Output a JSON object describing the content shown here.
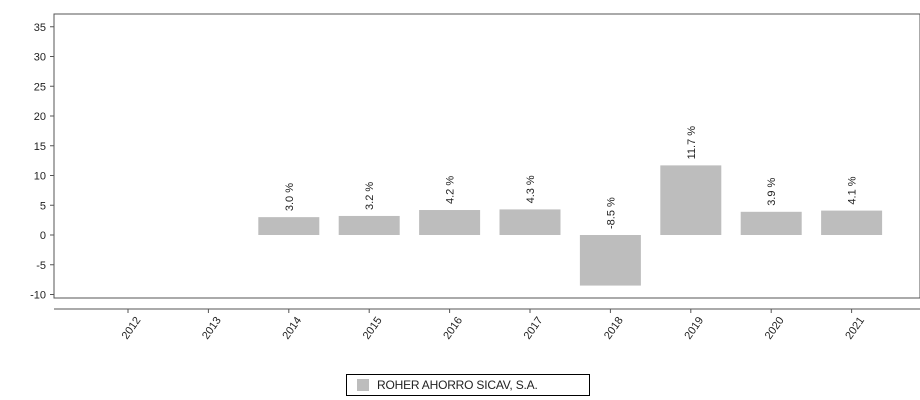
{
  "chart_data": {
    "type": "bar",
    "categories": [
      "2012",
      "2013",
      "2014",
      "2015",
      "2016",
      "2017",
      "2018",
      "2019",
      "2020",
      "2021"
    ],
    "series": [
      {
        "name": "ROHER AHORRO SICAV, S.A.",
        "values": [
          null,
          null,
          3.0,
          3.2,
          4.2,
          4.3,
          -8.5,
          11.7,
          3.9,
          4.1
        ],
        "labels": [
          "",
          "",
          "3.0 %",
          "3.2 %",
          "4.2 %",
          "4.3 %",
          "-8.5 %",
          "11.7 %",
          "3.9 %",
          "4.1 %"
        ]
      }
    ],
    "yticks": [
      "35",
      "30",
      "25",
      "20",
      "15",
      "10",
      "5",
      "0",
      "-5",
      "-10"
    ],
    "ylim": [
      -10,
      35
    ],
    "title": "",
    "xlabel": "",
    "ylabel": "",
    "legend_position": "bottom-center",
    "grid": false,
    "colors": {
      "bar": "#bdbdbd",
      "axis": "#555555",
      "text": "#222222"
    }
  }
}
